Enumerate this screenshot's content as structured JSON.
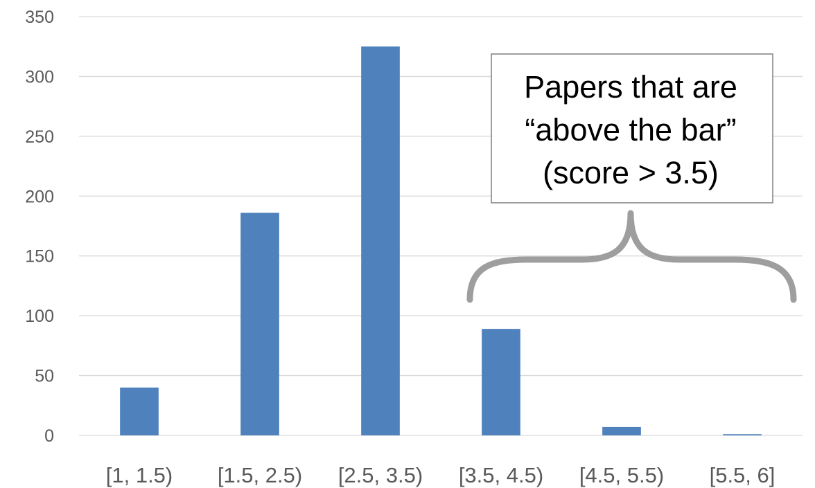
{
  "chart_data": {
    "type": "bar",
    "categories": [
      "[1, 1.5)",
      "[1.5, 2.5)",
      "[2.5, 3.5)",
      "[3.5, 4.5)",
      "[4.5, 5.5)",
      "[5.5, 6]"
    ],
    "values": [
      40,
      186,
      325,
      89,
      7,
      1
    ],
    "ylim": [
      0,
      350
    ],
    "yticks": [
      0,
      50,
      100,
      150,
      200,
      250,
      300,
      350
    ],
    "grid": true,
    "legend": "none",
    "title": "",
    "xlabel": "",
    "ylabel": "",
    "bar_color": "#4F81BD",
    "annotation": {
      "lines": [
        "Papers that are",
        "“above the bar”",
        "(score > 3.5)"
      ],
      "brace_over_categories": [
        "[3.5, 4.5)",
        "[4.5, 5.5)",
        "[5.5, 6]"
      ]
    }
  }
}
